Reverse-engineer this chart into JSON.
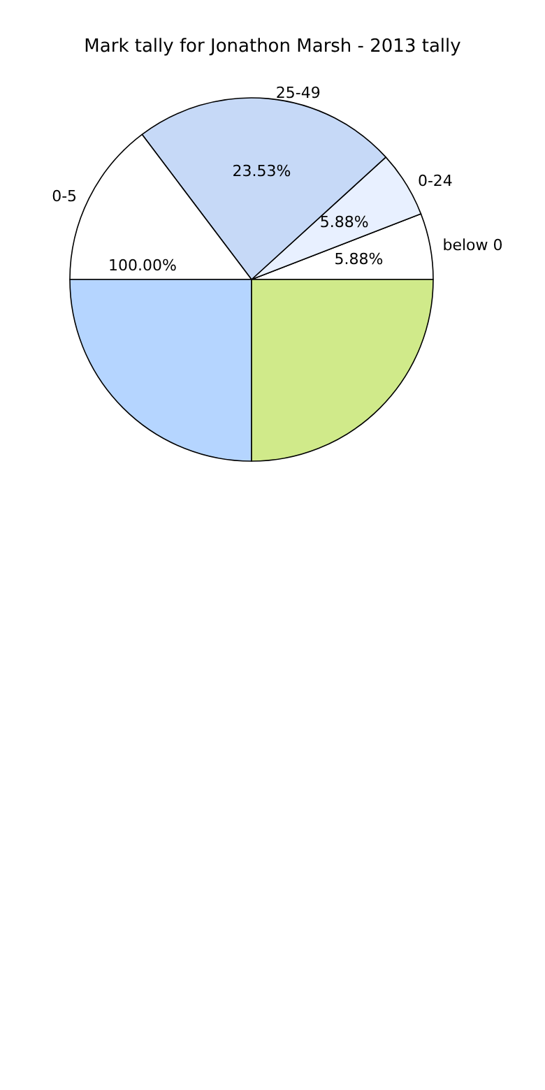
{
  "chart_data": {
    "type": "pie",
    "title": "Mark tally for Jonathon Marsh - 2013 tally",
    "categories": [
      "below 0",
      "0-24",
      "25-49",
      "0-5",
      null,
      null
    ],
    "values": [
      5.88,
      5.88,
      23.53,
      14.71,
      25,
      25
    ],
    "colors": [
      "#ffffff",
      "#e8f0ff",
      "#c6d9f7",
      "#ffffff",
      "#b5d5ff",
      "#d0ea8a"
    ],
    "value_labels": [
      "5.88%",
      "5.88%",
      "23.53%",
      null,
      null,
      null
    ],
    "annotations": [
      "100.00%"
    ]
  }
}
